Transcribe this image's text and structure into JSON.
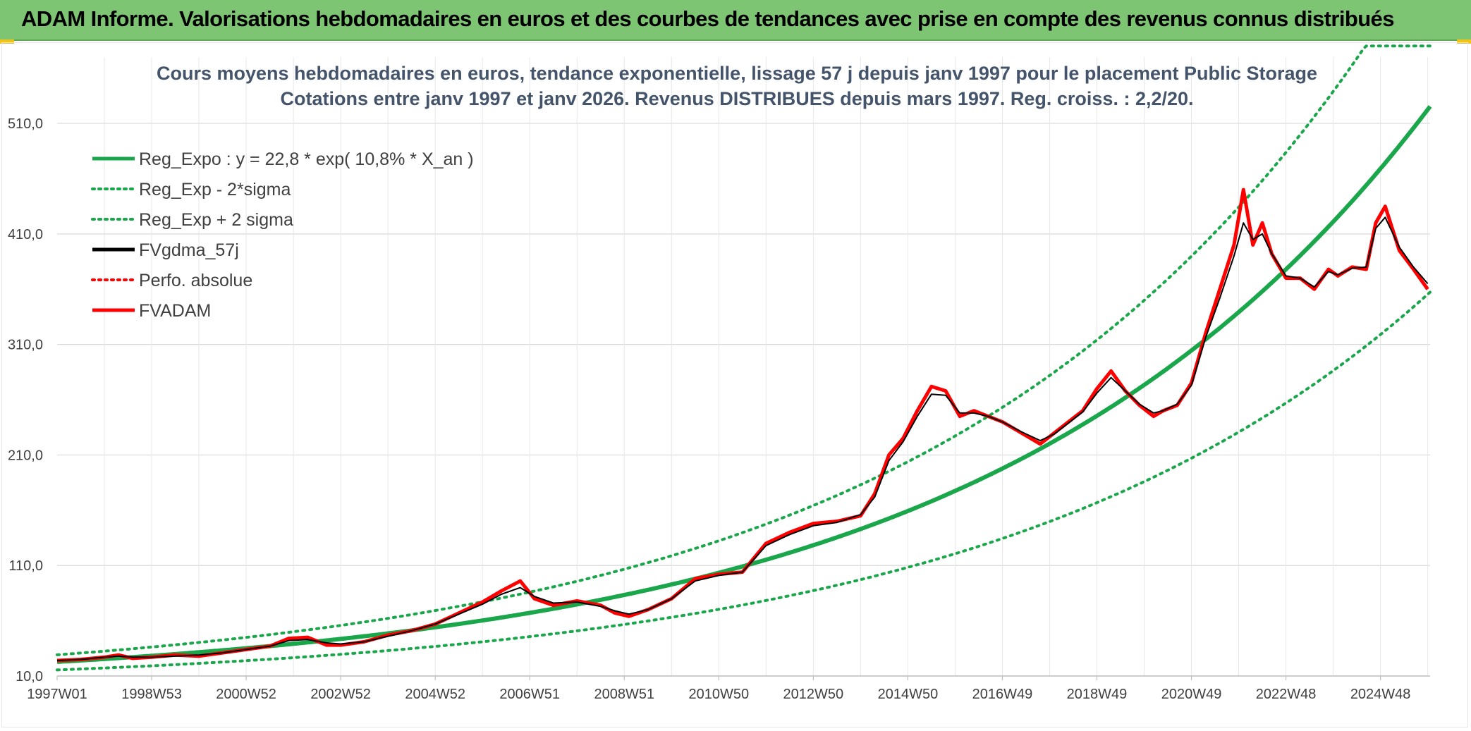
{
  "header": {
    "title": "ADAM Informe. Valorisations hebdomadaires en euros et des courbes de tendances avec prise en compte des revenus connus distribués"
  },
  "colors": {
    "banner": "#7dc473",
    "trend": "#1aa64a",
    "price": "#ff0000",
    "smooth": "#000000",
    "grid": "#d9d9d9",
    "title_text": "#44546a"
  },
  "chart_data": {
    "type": "line",
    "title": "Cours moyens hebdomadaires en euros, tendance exponentielle, lissage 57 j depuis janv 1997 pour le placement Public Storage",
    "subtitle": "Cotations entre janv 1997 et janv 2026. Revenus DISTRIBUES depuis mars 1997. Reg. croiss. : 2,2/20.",
    "xlabel": "",
    "ylabel": "",
    "x_range": [
      1997.0,
      2026.05
    ],
    "ylim": [
      10,
      570
    ],
    "y_ticks": [
      10,
      110,
      210,
      310,
      410,
      510
    ],
    "y_tick_labels": [
      "10,0",
      "110,0",
      "210,0",
      "310,0",
      "410,0",
      "510,0"
    ],
    "x_ticks": [
      1997.0,
      1999.0,
      2001.0,
      2003.0,
      2005.0,
      2007.0,
      2009.0,
      2011.0,
      2013.0,
      2015.0,
      2017.0,
      2019.0,
      2021.0,
      2023.0,
      2025.0
    ],
    "x_tick_labels": [
      "1997W01",
      "1998W53",
      "2000W52",
      "2002W52",
      "2004W52",
      "2006W51",
      "2008W51",
      "2010W50",
      "2012W50",
      "2014W50",
      "2016W49",
      "2018W49",
      "2020W49",
      "2022W48",
      "2024W48"
    ],
    "grid": true,
    "legend_position": "top-left",
    "legend": [
      {
        "label": "Reg_Expo : y = 22,8 * exp( 10,8% *  X_an )",
        "color": "#1aa64a",
        "style": "solid"
      },
      {
        "label": "Reg_Exp - 2*sigma",
        "color": "#1aa64a",
        "style": "dotted"
      },
      {
        "label": "Reg_Exp + 2 sigma",
        "color": "#1aa64a",
        "style": "dotted"
      },
      {
        "label": "FVgdma_57j",
        "color": "#000000",
        "style": "solid"
      },
      {
        "label": "Perfo. absolue",
        "color": "#ff0000",
        "style": "dotted"
      },
      {
        "label": "FVADAM",
        "color": "#ff0000",
        "style": "solid"
      }
    ],
    "regression": {
      "a": 22.8,
      "b": 0.108,
      "start_year": 1997.0,
      "lower_factor": 0.68,
      "upper_factor": 1.28,
      "cap": 580
    },
    "series": [
      {
        "name": "FVADAM",
        "x": [
          1997.0,
          1997.5,
          1998.0,
          1998.3,
          1998.6,
          1999.0,
          1999.5,
          2000.0,
          2000.5,
          2001.0,
          2001.5,
          2001.9,
          2002.3,
          2002.7,
          2003.0,
          2003.5,
          2004.0,
          2004.5,
          2005.0,
          2005.5,
          2006.0,
          2006.4,
          2006.8,
          2007.1,
          2007.5,
          2008.0,
          2008.5,
          2008.8,
          2009.1,
          2009.5,
          2010.0,
          2010.5,
          2011.0,
          2011.5,
          2012.0,
          2012.5,
          2013.0,
          2013.5,
          2014.0,
          2014.3,
          2014.6,
          2014.9,
          2015.2,
          2015.5,
          2015.8,
          2016.1,
          2016.4,
          2016.7,
          2017.0,
          2017.4,
          2017.8,
          2018.1,
          2018.4,
          2018.7,
          2019.0,
          2019.3,
          2019.6,
          2019.9,
          2020.2,
          2020.4,
          2020.7,
          2021.0,
          2021.3,
          2021.6,
          2021.9,
          2022.1,
          2022.3,
          2022.5,
          2022.7,
          2023.0,
          2023.3,
          2023.6,
          2023.9,
          2024.1,
          2024.4,
          2024.7,
          2024.9,
          2025.1,
          2025.4,
          2025.7,
          2026.0
        ],
        "values": [
          24,
          25,
          27,
          29,
          26,
          27,
          29,
          28,
          31,
          34,
          37,
          44,
          45,
          38,
          38,
          41,
          47,
          51,
          57,
          67,
          77,
          87,
          96,
          80,
          74,
          78,
          74,
          67,
          64,
          70,
          80,
          98,
          102,
          104,
          130,
          140,
          148,
          150,
          155,
          175,
          210,
          225,
          250,
          272,
          268,
          245,
          250,
          245,
          240,
          230,
          220,
          230,
          240,
          250,
          270,
          286,
          268,
          255,
          245,
          250,
          255,
          275,
          320,
          360,
          400,
          450,
          400,
          420,
          392,
          370,
          370,
          360,
          378,
          372,
          380,
          378,
          420,
          435,
          395,
          378,
          360
        ]
      },
      {
        "name": "FVgdma_57j",
        "x": [
          1997.0,
          1997.5,
          1998.0,
          1998.3,
          1998.6,
          1999.0,
          1999.5,
          2000.0,
          2000.5,
          2001.0,
          2001.5,
          2001.9,
          2002.3,
          2002.7,
          2003.0,
          2003.5,
          2004.0,
          2004.5,
          2005.0,
          2005.5,
          2006.0,
          2006.4,
          2006.8,
          2007.1,
          2007.5,
          2008.0,
          2008.5,
          2008.8,
          2009.1,
          2009.5,
          2010.0,
          2010.5,
          2011.0,
          2011.5,
          2012.0,
          2012.5,
          2013.0,
          2013.5,
          2014.0,
          2014.3,
          2014.6,
          2014.9,
          2015.2,
          2015.5,
          2015.8,
          2016.1,
          2016.4,
          2016.7,
          2017.0,
          2017.4,
          2017.8,
          2018.1,
          2018.4,
          2018.7,
          2019.0,
          2019.3,
          2019.6,
          2019.9,
          2020.2,
          2020.4,
          2020.7,
          2021.0,
          2021.3,
          2021.6,
          2021.9,
          2022.1,
          2022.3,
          2022.5,
          2022.7,
          2023.0,
          2023.3,
          2023.6,
          2023.9,
          2024.1,
          2024.4,
          2024.7,
          2024.9,
          2025.1,
          2025.4,
          2025.7,
          2026.0
        ],
        "values": [
          24,
          25,
          27,
          28,
          27,
          27,
          28,
          29,
          31,
          34,
          37,
          42,
          43,
          40,
          39,
          41,
          46,
          51,
          57,
          66,
          75,
          84,
          90,
          82,
          76,
          77,
          73,
          69,
          66,
          70,
          80,
          96,
          101,
          104,
          128,
          138,
          146,
          149,
          156,
          172,
          205,
          222,
          245,
          265,
          264,
          248,
          248,
          245,
          240,
          231,
          223,
          229,
          239,
          249,
          266,
          280,
          268,
          256,
          248,
          250,
          256,
          273,
          316,
          352,
          390,
          420,
          405,
          410,
          392,
          372,
          370,
          362,
          376,
          373,
          379,
          380,
          415,
          425,
          398,
          380,
          365
        ]
      }
    ]
  }
}
